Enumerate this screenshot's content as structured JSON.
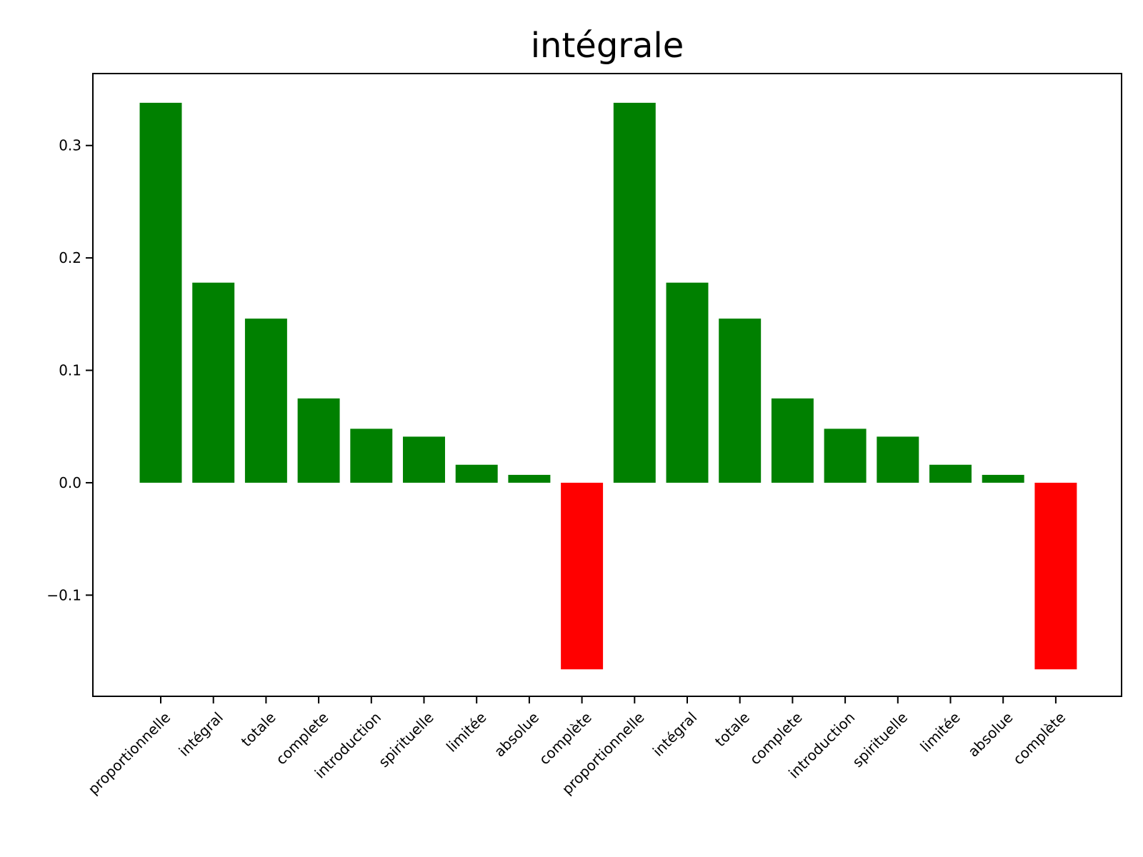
{
  "chart_data": {
    "type": "bar",
    "title": "intégrale",
    "xlabel": "",
    "ylabel": "",
    "categories": [
      "proportionnelle",
      "intégral",
      "totale",
      "complete",
      "introduction",
      "spirituelle",
      "limitée",
      "absolue",
      "complète",
      "proportionnelle",
      "intégral",
      "totale",
      "complete",
      "introduction",
      "spirituelle",
      "limitée",
      "absolue",
      "complète"
    ],
    "values": [
      0.338,
      0.178,
      0.146,
      0.075,
      0.048,
      0.041,
      0.016,
      0.007,
      -0.166,
      0.338,
      0.178,
      0.146,
      0.075,
      0.048,
      0.041,
      0.016,
      0.007,
      -0.166
    ],
    "ylim": [
      -0.19,
      0.364
    ],
    "yticks": [
      -0.1,
      0.0,
      0.1,
      0.2,
      0.3
    ],
    "ytick_labels": [
      "−0.1",
      "0.0",
      "0.1",
      "0.2",
      "0.3"
    ],
    "colors": {
      "positive": "#008000",
      "negative": "#ff0000"
    },
    "grid": false,
    "legend": "none",
    "xtick_rotation": 45
  }
}
